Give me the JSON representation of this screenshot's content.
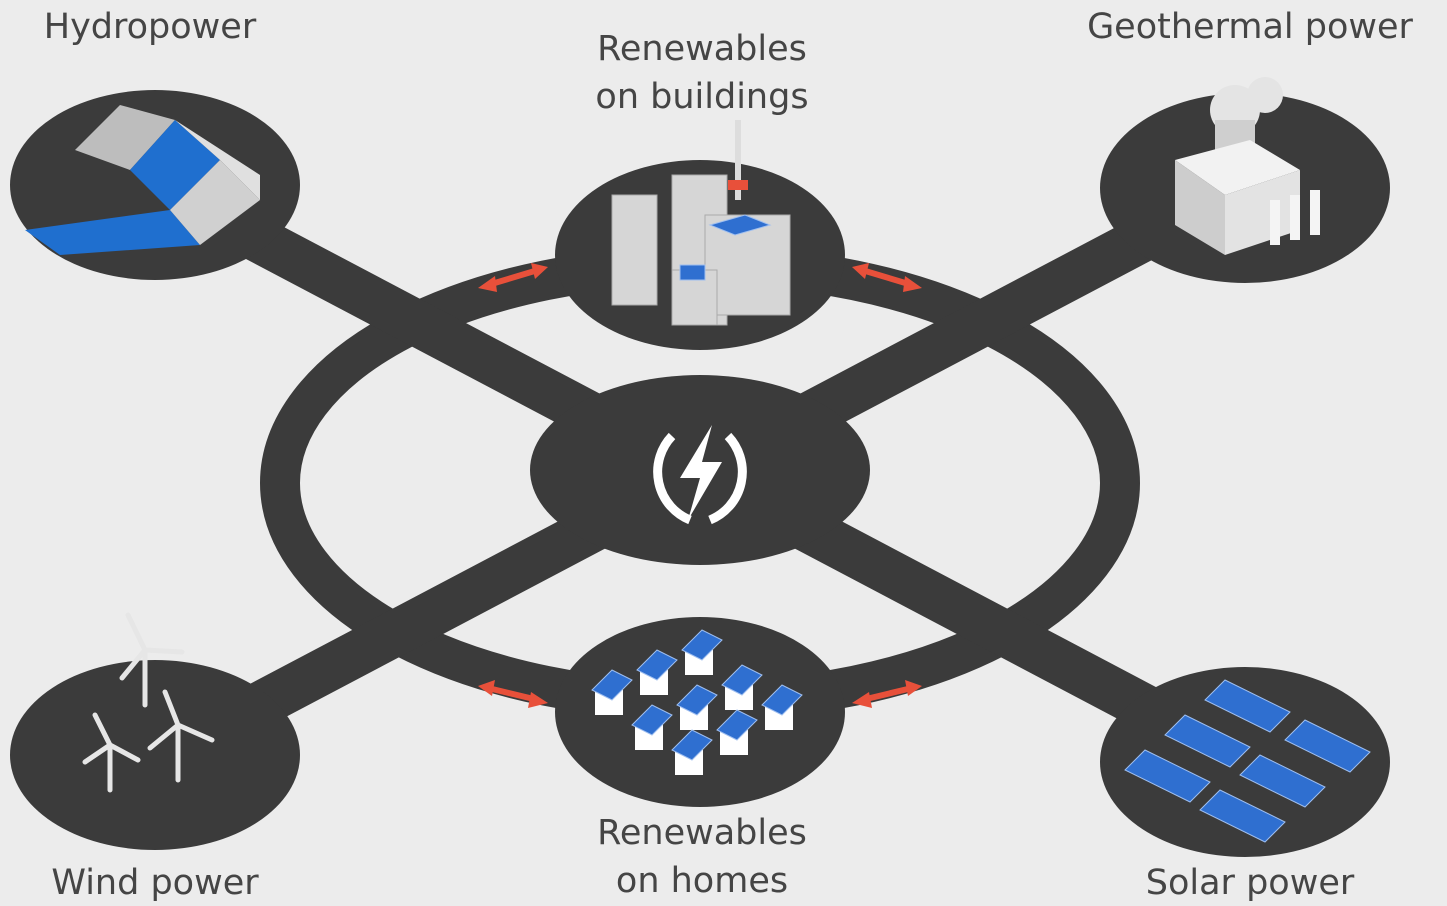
{
  "nodes": [
    {
      "label": [
        "Hydropower"
      ]
    },
    {
      "label": [
        "Renewables",
        "on buildings"
      ]
    },
    {
      "label": [
        "Geothermal power"
      ]
    },
    {
      "label": [
        "Wind power"
      ]
    },
    {
      "label": [
        "Renewables",
        "on homes"
      ]
    },
    {
      "label": [
        "Solar power"
      ]
    }
  ]
}
